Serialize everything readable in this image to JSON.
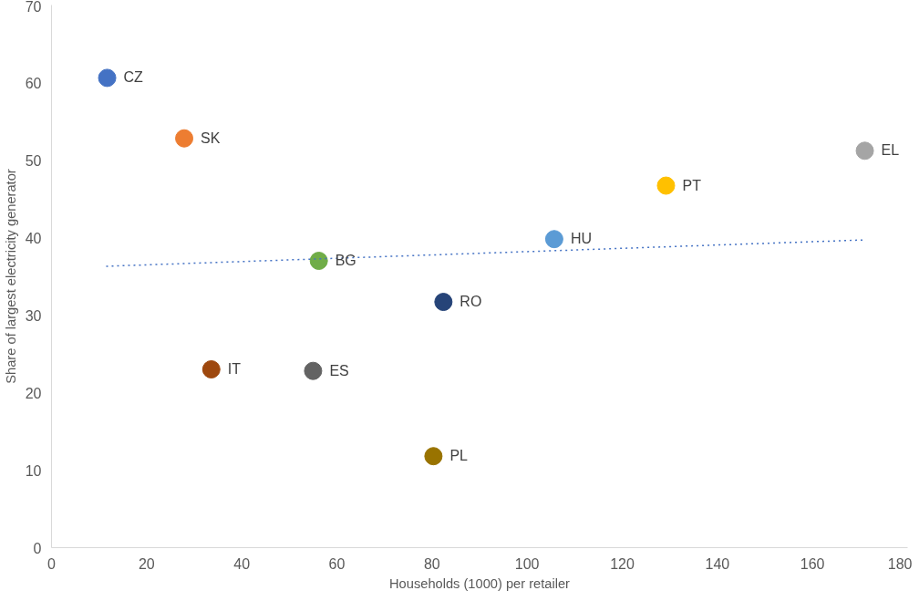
{
  "chart_data": {
    "type": "scatter",
    "xlabel": "Households (1000) per retailer",
    "ylabel": "Share of largest electricity generator",
    "xlim": [
      0,
      180
    ],
    "xticks": [
      0,
      20,
      40,
      60,
      80,
      100,
      120,
      140,
      160,
      180
    ],
    "ylim": [
      0,
      70
    ],
    "yticks": [
      0,
      10,
      20,
      30,
      40,
      50,
      60,
      70
    ],
    "grid": false,
    "legend": false,
    "marker": "circle",
    "series": [
      {
        "name": "CZ",
        "color": "#4472c4",
        "x": [
          11.7
        ],
        "values": [
          60.6
        ]
      },
      {
        "name": "SK",
        "color": "#ed7d31",
        "x": [
          27.9
        ],
        "values": [
          52.8
        ]
      },
      {
        "name": "IT",
        "color": "#9e480e",
        "x": [
          33.6
        ],
        "values": [
          23.0
        ]
      },
      {
        "name": "ES",
        "color": "#636363",
        "x": [
          55.0
        ],
        "values": [
          22.8
        ]
      },
      {
        "name": "BG",
        "color": "#70ad47",
        "x": [
          56.2
        ],
        "values": [
          37.0
        ]
      },
      {
        "name": "RO",
        "color": "#264478",
        "x": [
          82.4
        ],
        "values": [
          31.7
        ]
      },
      {
        "name": "PL",
        "color": "#997300",
        "x": [
          80.3
        ],
        "values": [
          11.8
        ]
      },
      {
        "name": "HU",
        "color": "#5b9bd5",
        "x": [
          105.7
        ],
        "values": [
          39.8
        ]
      },
      {
        "name": "PT",
        "color": "#ffc000",
        "x": [
          129.2
        ],
        "values": [
          46.7
        ]
      },
      {
        "name": "EL",
        "color": "#a5a5a5",
        "x": [
          171.0
        ],
        "values": [
          51.2
        ]
      },
      {
        "type": "line",
        "color": "#4472c4",
        "line_style": "dotted",
        "marker": "none",
        "x": [
          11.5,
          171.0
        ],
        "values": [
          36.3,
          39.7
        ]
      }
    ]
  }
}
